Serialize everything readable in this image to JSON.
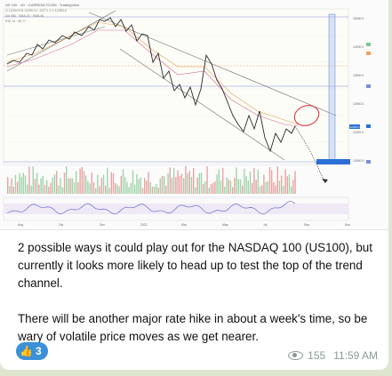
{
  "chart": {
    "legend_rows": [
      "US 100 · 1D · CURRENCYCOM · TradingView",
      "O 12334.6  H 12490.0  L 12271.1  C 12353.0",
      "Vol 55k  ·  SMA 20  ·  SMA 50",
      "RSI 14  ·  56.77"
    ],
    "axis_labels": [
      "15000.0",
      "14000.0",
      "13000.0",
      "12000.0",
      "11000.0",
      "10000.0"
    ],
    "date_labels": [
      "Aug",
      "Oct",
      "Dec",
      "2022",
      "Mar",
      "May",
      "Jul",
      "Sep",
      "Nov"
    ],
    "price_tag": "12353.0"
  },
  "message": {
    "paragraph1": "2 possible ways it could play out for the NASDAQ 100 (US100), but currently it looks more likely to head up to test the top of the trend channel.",
    "paragraph2": "There will be another major rate hike in about a week's time, so be wary of volatile price moves as we get nearer."
  },
  "reaction": {
    "icon": "thumbs-up-icon",
    "emoji": "👍",
    "count": "3",
    "color": "#3a90d9"
  },
  "meta": {
    "views": "155",
    "time": "11:59 AM"
  }
}
